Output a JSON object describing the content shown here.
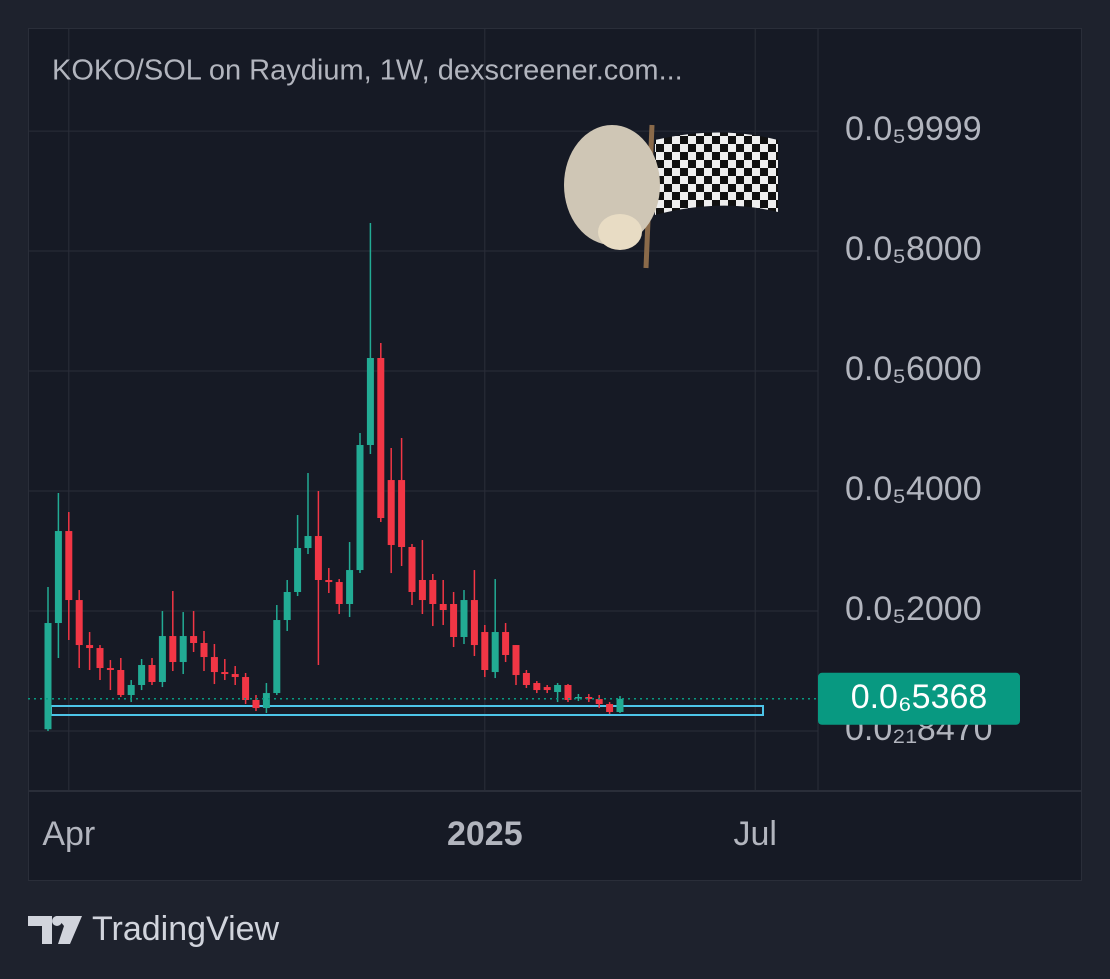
{
  "chart_data": {
    "type": "candlestick",
    "title": "KOKO/SOL on Raydium, 1W, dexscreener.com...",
    "categories": [
      null,
      null,
      "Apr",
      null,
      null,
      null,
      null,
      null,
      null,
      null,
      null,
      null,
      null,
      null,
      null,
      null,
      null,
      null,
      null,
      null,
      null,
      null,
      null,
      null,
      null,
      null,
      null,
      null,
      null,
      null,
      null,
      null,
      null,
      null,
      null,
      null,
      null,
      null,
      null,
      null,
      null,
      null,
      "2025",
      null,
      null,
      null,
      null,
      null,
      null,
      null,
      null,
      null,
      null,
      null,
      null,
      null,
      null,
      null,
      null,
      null,
      null,
      null,
      null,
      null,
      null,
      null,
      null,
      null,
      "Jul",
      null,
      null,
      null,
      null,
      null,
      null
    ],
    "open": [
      3e-08,
      1.8e-06,
      3.333e-06,
      2.183e-06,
      1.433e-06,
      1.383e-06,
      1.05e-06,
      1.017e-06,
      6e-07,
      7.67e-07,
      1.1e-06,
      8.17e-07,
      1.583e-06,
      1.15e-06,
      1.583e-06,
      1.467e-06,
      1.233e-06,
      9.83e-07,
      9.5e-07,
      9e-07,
      5.17e-07,
      3.83e-07,
      6.33e-07,
      1.85e-06,
      2.317e-06,
      3.05e-06,
      3.25e-06,
      2.517e-06,
      2.483e-06,
      2.117e-06,
      2.683e-06,
      4.767e-06,
      6.217e-06,
      4.183e-06,
      4.183e-06,
      3.067e-06,
      2.517e-06,
      2.517e-06,
      2.117e-06,
      2.117e-06,
      1.567e-06,
      2.183e-06,
      1.65e-06,
      9.83e-07,
      1.65e-06,
      1.433e-06,
      9.67e-07,
      8e-07,
      7.33e-07,
      6.5e-07,
      7.67e-07,
      5.5e-07,
      5.67e-07,
      5.33e-07,
      4.5e-07,
      3.17e-07,
      null,
      null,
      null,
      null,
      null,
      null,
      null,
      null,
      null,
      null,
      null,
      null,
      null,
      null,
      null,
      null,
      null,
      null,
      null
    ],
    "high": [
      2.4e-06,
      3.967e-06,
      3.65e-06,
      2.35e-06,
      1.65e-06,
      1.433e-06,
      1.183e-06,
      1.217e-06,
      8.5e-07,
      1.2e-06,
      1.217e-06,
      2e-06,
      2.333e-06,
      1.983e-06,
      2e-06,
      1.667e-06,
      1.45e-06,
      1.2e-06,
      1.083e-06,
      9.67e-07,
      6e-07,
      8e-07,
      2.1e-06,
      2.517e-06,
      3.6e-06,
      4.3e-06,
      4e-06,
      2.717e-06,
      2.533e-06,
      3.15e-06,
      4.967e-06,
      8.467e-06,
      6.467e-06,
      4.717e-06,
      4.883e-06,
      3.117e-06,
      3.183e-06,
      2.617e-06,
      2.517e-06,
      2.317e-06,
      2.35e-06,
      2.683e-06,
      1.767e-06,
      2.533e-06,
      1.8e-06,
      1.433e-06,
      1.017e-06,
      8.33e-07,
      7.67e-07,
      8e-07,
      7.83e-07,
      6.17e-07,
      6.17e-07,
      6e-07,
      4.83e-07,
      5.83e-07,
      null,
      null,
      null,
      null,
      null,
      null,
      null,
      null,
      null,
      null,
      null,
      null,
      null,
      null,
      null,
      null,
      null,
      null,
      null
    ],
    "low": [
      0,
      1.217e-06,
      1.517e-06,
      1.05e-06,
      1.017e-06,
      8.5e-07,
      6.83e-07,
      5.67e-07,
      4.83e-07,
      6.83e-07,
      7.67e-07,
      7.33e-07,
      1e-06,
      9.5e-07,
      1.317e-06,
      1e-06,
      7.83e-07,
      8.5e-07,
      7.67e-07,
      4.5e-07,
      3.33e-07,
      3e-07,
      6e-07,
      1.667e-06,
      2.25e-06,
      2.95e-06,
      1.1e-06,
      2.3e-06,
      1.95e-06,
      1.9e-06,
      2.633e-06,
      4.617e-06,
      3.483e-06,
      2.633e-06,
      2.75e-06,
      2.1e-06,
      1.95e-06,
      1.75e-06,
      1.767e-06,
      1.4e-06,
      1.45e-06,
      1.25e-06,
      9e-07,
      8.83e-07,
      1.15e-06,
      7.67e-07,
      7.17e-07,
      6.33e-07,
      6.33e-07,
      4.83e-07,
      4.83e-07,
      5e-07,
      4.83e-07,
      3.83e-07,
      2.83e-07,
      3e-07,
      null,
      null,
      null,
      null,
      null,
      null,
      null,
      null,
      null,
      null,
      null,
      null,
      null,
      null,
      null,
      null,
      null,
      null,
      null
    ],
    "close": [
      1.8e-06,
      3.333e-06,
      2.183e-06,
      1.433e-06,
      1.383e-06,
      1.05e-06,
      1.017e-06,
      6e-07,
      7.67e-07,
      1.1e-06,
      8.17e-07,
      1.583e-06,
      1.15e-06,
      1.583e-06,
      1.467e-06,
      1.233e-06,
      9.83e-07,
      9.5e-07,
      9e-07,
      5.17e-07,
      3.83e-07,
      6.33e-07,
      1.85e-06,
      2.317e-06,
      3.05e-06,
      3.25e-06,
      2.517e-06,
      2.483e-06,
      2.117e-06,
      2.683e-06,
      4.767e-06,
      6.217e-06,
      3.55e-06,
      3.1e-06,
      3.067e-06,
      2.317e-06,
      2.183e-06,
      2.117e-06,
      2.017e-06,
      1.567e-06,
      2.183e-06,
      1.433e-06,
      1.017e-06,
      1.65e-06,
      1.267e-06,
      9.33e-07,
      7.67e-07,
      6.83e-07,
      6.83e-07,
      7.67e-07,
      5.17e-07,
      5.67e-07,
      5.33e-07,
      4.5e-07,
      3.17e-07,
      5.368e-07,
      null,
      null,
      null,
      null,
      null,
      null,
      null,
      null,
      null,
      null,
      null,
      null,
      null,
      null,
      null,
      null,
      null,
      null,
      null
    ],
    "up_color": "#22ab94",
    "down_color": "#f23645",
    "ylim": [
      -9.83e-07,
      1.1717e-05
    ],
    "yticks": [
      {
        "value": 8.47e-22,
        "label": "0.0₂₁8470"
      },
      {
        "value": 2e-06,
        "label": "0.0₅2000"
      },
      {
        "value": 4e-06,
        "label": "0.0₅4000"
      },
      {
        "value": 6e-06,
        "label": "0.0₅6000"
      },
      {
        "value": 8e-06,
        "label": "0.0₅8000"
      },
      {
        "value": 9.999e-06,
        "label": "0.0₅9999"
      }
    ],
    "last_price": {
      "value": 5.368e-07,
      "label": "0.0₆5368"
    },
    "last_price_color": "#089981",
    "grid": true
  },
  "footer": {
    "brand": "TradingView"
  }
}
